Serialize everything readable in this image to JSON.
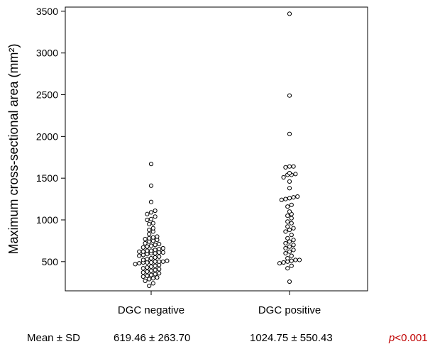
{
  "chart_data": {
    "type": "scatter",
    "ylabel": "Maximum cross-sectional area (mm²)",
    "ylim": [
      150,
      3550
    ],
    "yticks": [
      500,
      1000,
      1500,
      2000,
      2500,
      3000,
      3500
    ],
    "categories": [
      "DGC negative",
      "DGC positive"
    ],
    "grid": false,
    "series": [
      {
        "category": "DGC negative",
        "values": [
          1670,
          1410,
          1215,
          1110,
          1090,
          1070,
          1040,
          1010,
          1000,
          960,
          950,
          900,
          880,
          860,
          830,
          800,
          790,
          780,
          770,
          760,
          750,
          740,
          720,
          710,
          700,
          690,
          680,
          670,
          660,
          650,
          640,
          630,
          630,
          620,
          620,
          610,
          610,
          600,
          600,
          590,
          580,
          570,
          560,
          550,
          540,
          530,
          520,
          510,
          500,
          500,
          500,
          490,
          490,
          490,
          480,
          470,
          460,
          450,
          440,
          430,
          420,
          410,
          400,
          390,
          380,
          370,
          360,
          350,
          340,
          330,
          320,
          310,
          300,
          290,
          270,
          240,
          210
        ]
      },
      {
        "category": "DGC positive",
        "values": [
          3470,
          2490,
          2030,
          1640,
          1640,
          1630,
          1560,
          1550,
          1540,
          1540,
          1510,
          1460,
          1380,
          1280,
          1270,
          1260,
          1250,
          1240,
          1180,
          1160,
          1100,
          1070,
          1050,
          1020,
          980,
          960,
          920,
          900,
          880,
          860,
          820,
          780,
          760,
          740,
          720,
          700,
          680,
          660,
          640,
          620,
          600,
          570,
          540,
          520,
          520,
          510,
          500,
          490,
          480,
          450,
          420,
          260
        ]
      }
    ]
  },
  "summary": {
    "row_label": "Mean ± SD",
    "negative_stat": "619.46 ± 263.70",
    "positive_stat": "1024.75 ± 550.43",
    "p_prefix": "p",
    "p_suffix": "<0.001"
  },
  "colors": {
    "marker_stroke": "#000000",
    "axis": "#000000",
    "pvalue": "#c00000"
  }
}
